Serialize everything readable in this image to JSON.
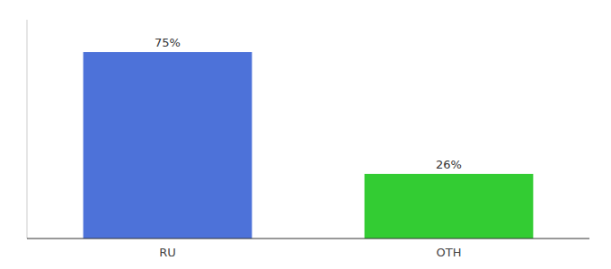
{
  "chart_data": {
    "type": "bar",
    "categories": [
      "RU",
      "OTH"
    ],
    "values": [
      75,
      26
    ],
    "value_labels": [
      "75%",
      "26%"
    ],
    "data_labels": true,
    "colors": [
      "#4d72d9",
      "#33cc33"
    ],
    "ylim": [
      0,
      88
    ],
    "tick_labels": "x",
    "grid": false
  }
}
